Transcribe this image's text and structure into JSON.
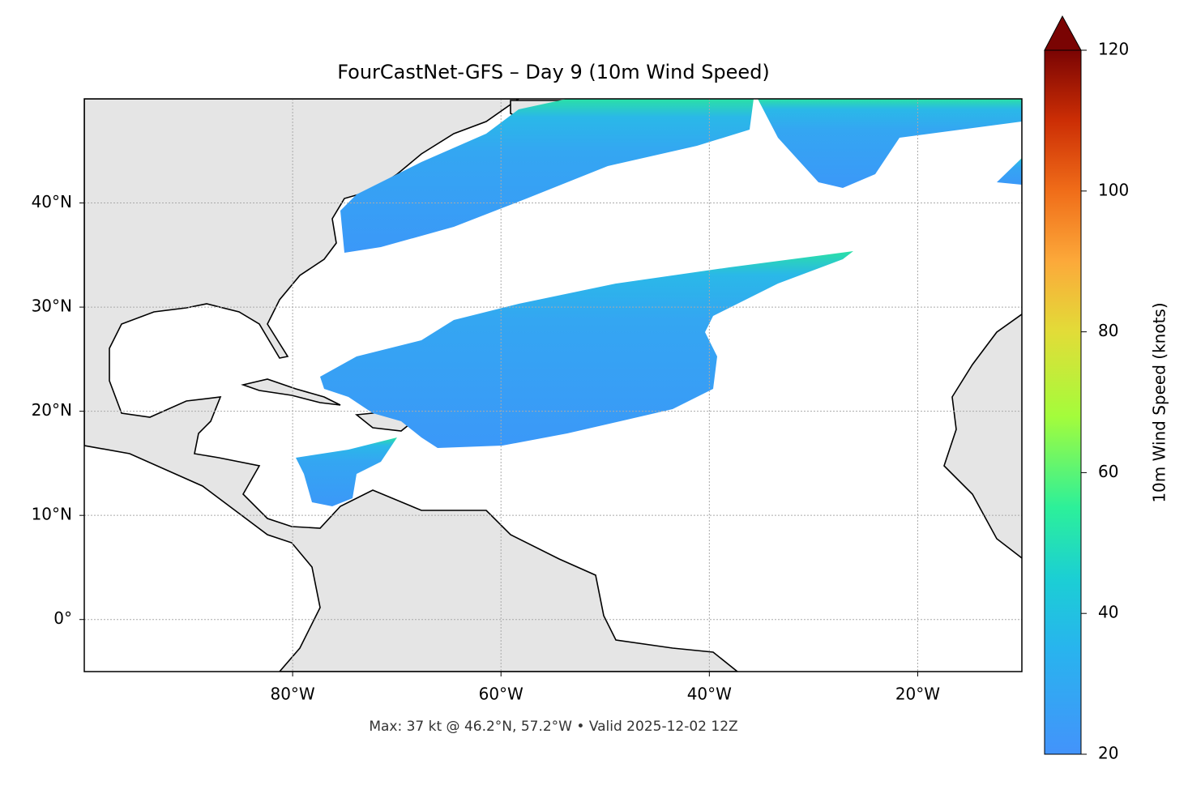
{
  "title": "FourCastNet-GFS – Day 9 (10m Wind Speed)",
  "map": {
    "lonlim": [
      -100,
      -10
    ],
    "latlim": [
      -5,
      50
    ],
    "lon_ticks": [
      {
        "value": -80,
        "label": "80°W"
      },
      {
        "value": -60,
        "label": "60°W"
      },
      {
        "value": -40,
        "label": "40°W"
      },
      {
        "value": -20,
        "label": "20°W"
      }
    ],
    "lat_ticks": [
      {
        "value": 0,
        "label": "0°"
      },
      {
        "value": 10,
        "label": "10°N"
      },
      {
        "value": 20,
        "label": "20°N"
      },
      {
        "value": 30,
        "label": "30°N"
      },
      {
        "value": 40,
        "label": "40°N"
      }
    ],
    "grid": true
  },
  "colorbar": {
    "label": "10m Wind Speed (knots)",
    "lim": [
      20,
      120
    ],
    "ticks": [
      20,
      40,
      60,
      80,
      100,
      120
    ]
  },
  "footer": "Max: 37 kt @ 46.2°N, 57.2°W • Valid 2025-12-02 12Z"
}
